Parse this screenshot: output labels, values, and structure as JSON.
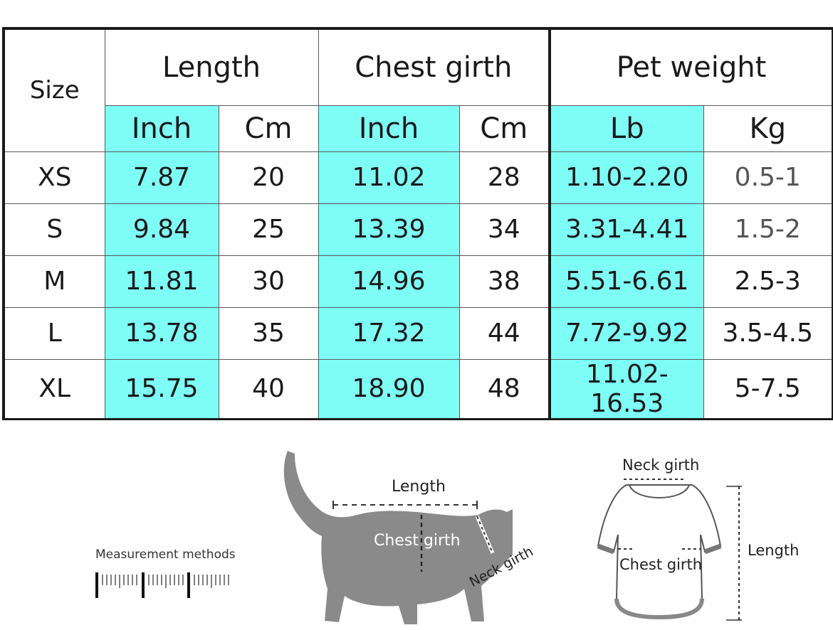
{
  "table": {
    "size_header": "Size",
    "groups": [
      "Length",
      "Chest girth",
      "Pet weight"
    ],
    "units": [
      "Inch",
      "Cm",
      "Inch",
      "Cm",
      "Lb",
      "Kg"
    ],
    "rows": [
      {
        "size": "XS",
        "length_inch": "7.87",
        "length_cm": "20",
        "chest_inch": "11.02",
        "chest_cm": "28",
        "weight_lb": "1.10-2.20",
        "weight_kg": "0.5-1"
      },
      {
        "size": "S",
        "length_inch": "9.84",
        "length_cm": "25",
        "chest_inch": "13.39",
        "chest_cm": "34",
        "weight_lb": "3.31-4.41",
        "weight_kg": "1.5-2"
      },
      {
        "size": "M",
        "length_inch": "11.81",
        "length_cm": "30",
        "chest_inch": "14.96",
        "chest_cm": "38",
        "weight_lb": "5.51-6.61",
        "weight_kg": "2.5-3"
      },
      {
        "size": "L",
        "length_inch": "13.78",
        "length_cm": "35",
        "chest_inch": "17.32",
        "chest_cm": "44",
        "weight_lb": "7.72-9.92",
        "weight_kg": "3.5-4.5"
      },
      {
        "size": "XL",
        "length_inch": "15.75",
        "length_cm": "40",
        "chest_inch": "18.90",
        "chest_cm": "48",
        "weight_lb": "11.02-16.53",
        "weight_kg": "5-7.5"
      }
    ]
  },
  "diagram": {
    "measurement_label": "Measurement methods",
    "cat_length": "Length",
    "cat_chest": "Chest girth",
    "cat_neck": "Neck girth",
    "shirt_neck": "Neck girth",
    "shirt_length": "Length",
    "shirt_chest": "Chest girth"
  },
  "colors": {
    "highlight": "#7efcf6",
    "cat_fill": "#8a8a8a"
  }
}
